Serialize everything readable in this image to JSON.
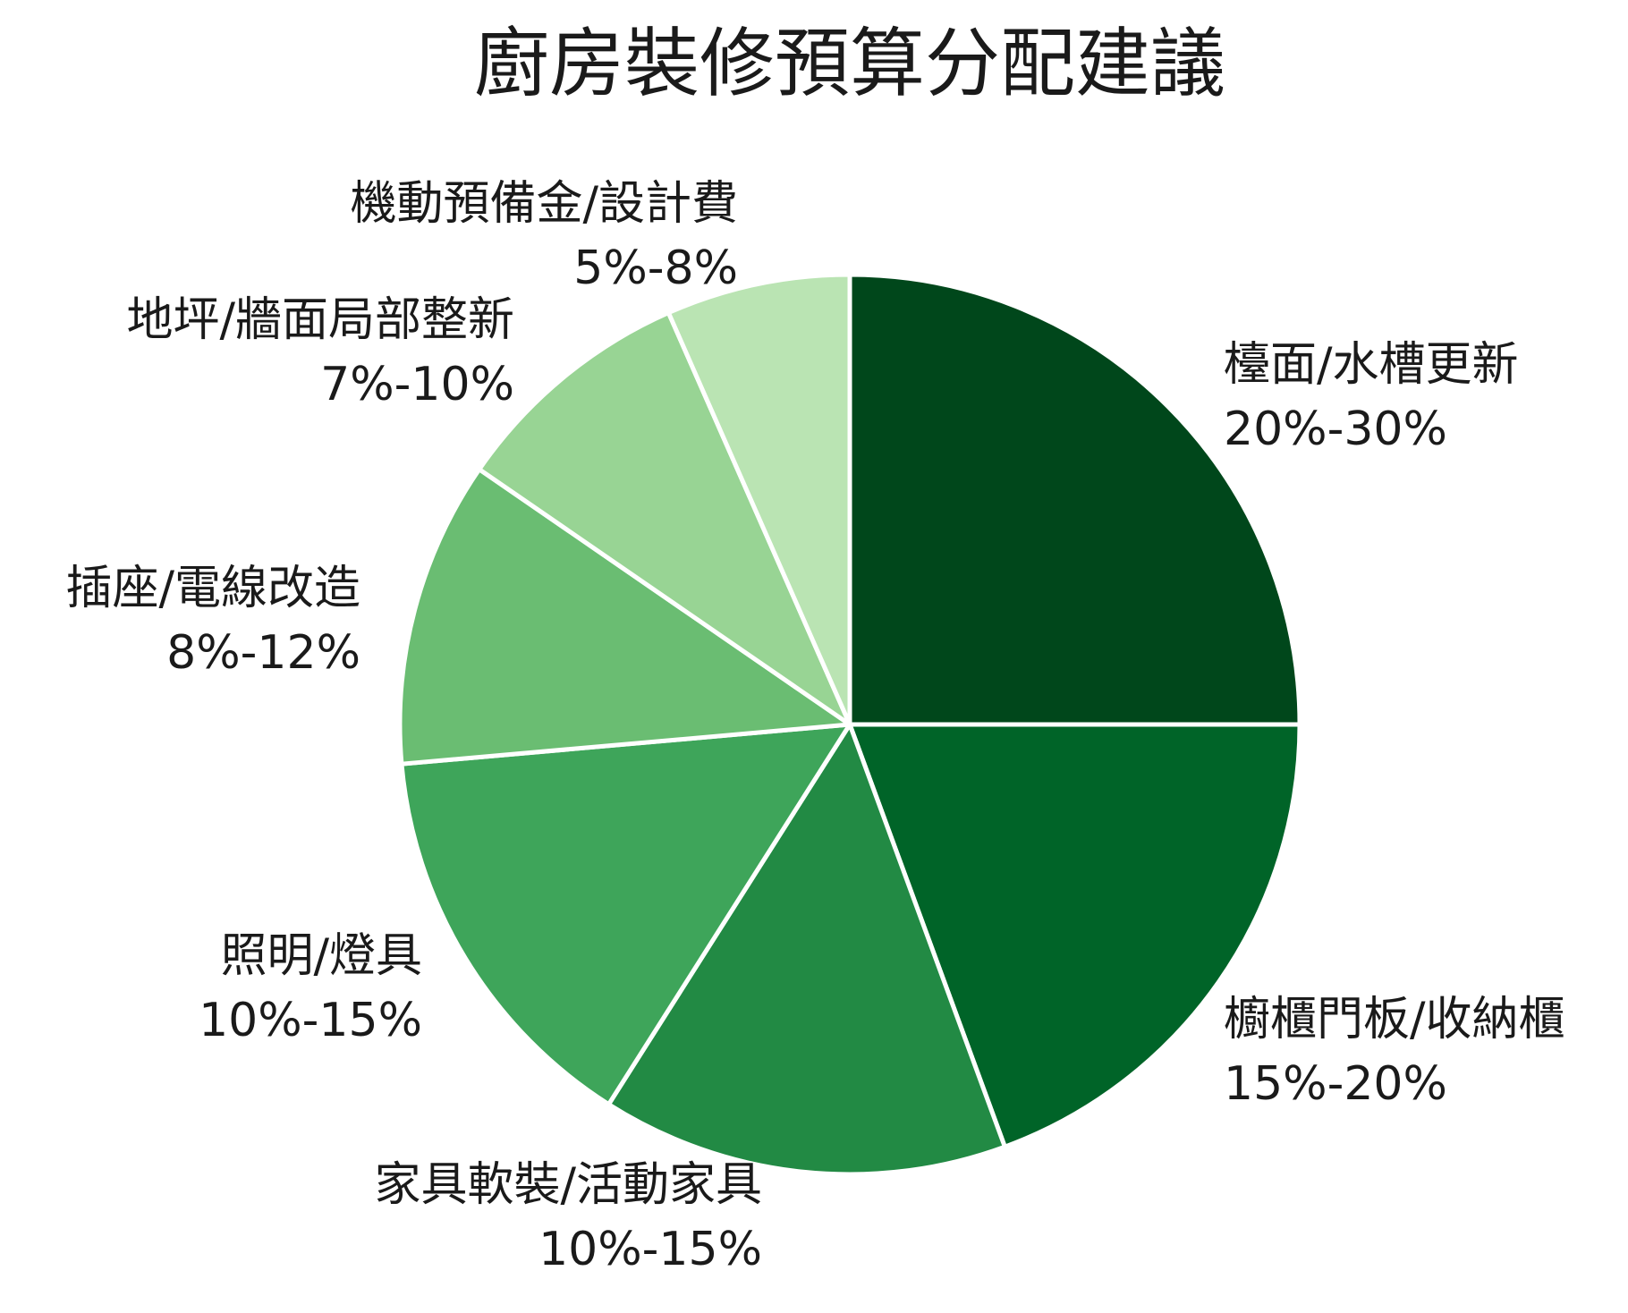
{
  "chart_data": {
    "type": "pie",
    "title": "廚房裝修預算分配建議",
    "start_angle_deg": 0,
    "direction": "clockwise",
    "legend": "none",
    "slices": [
      {
        "name": "檯面/水槽更新",
        "range": "20%-30%",
        "value": 25,
        "color": "#00471b"
      },
      {
        "name": "櫥櫃門板/收納櫃",
        "range": "15%-20%",
        "value": 19.4,
        "color": "#006428"
      },
      {
        "name": "家具軟裝/活動家具",
        "range": "10%-15%",
        "value": 14.6,
        "color": "#228a44"
      },
      {
        "name": "照明/燈具",
        "range": "10%-15%",
        "value": 14.6,
        "color": "#3ea55a"
      },
      {
        "name": "插座/電線改造",
        "range": "8%-12%",
        "value": 11,
        "color": "#6abd72"
      },
      {
        "name": "地坪/牆面局部整新",
        "range": "7%-10%",
        "value": 8.8,
        "color": "#98d494"
      },
      {
        "name": "機動預備金/設計費",
        "range": "5%-8%",
        "value": 6.6,
        "color": "#bae4b3"
      }
    ]
  }
}
